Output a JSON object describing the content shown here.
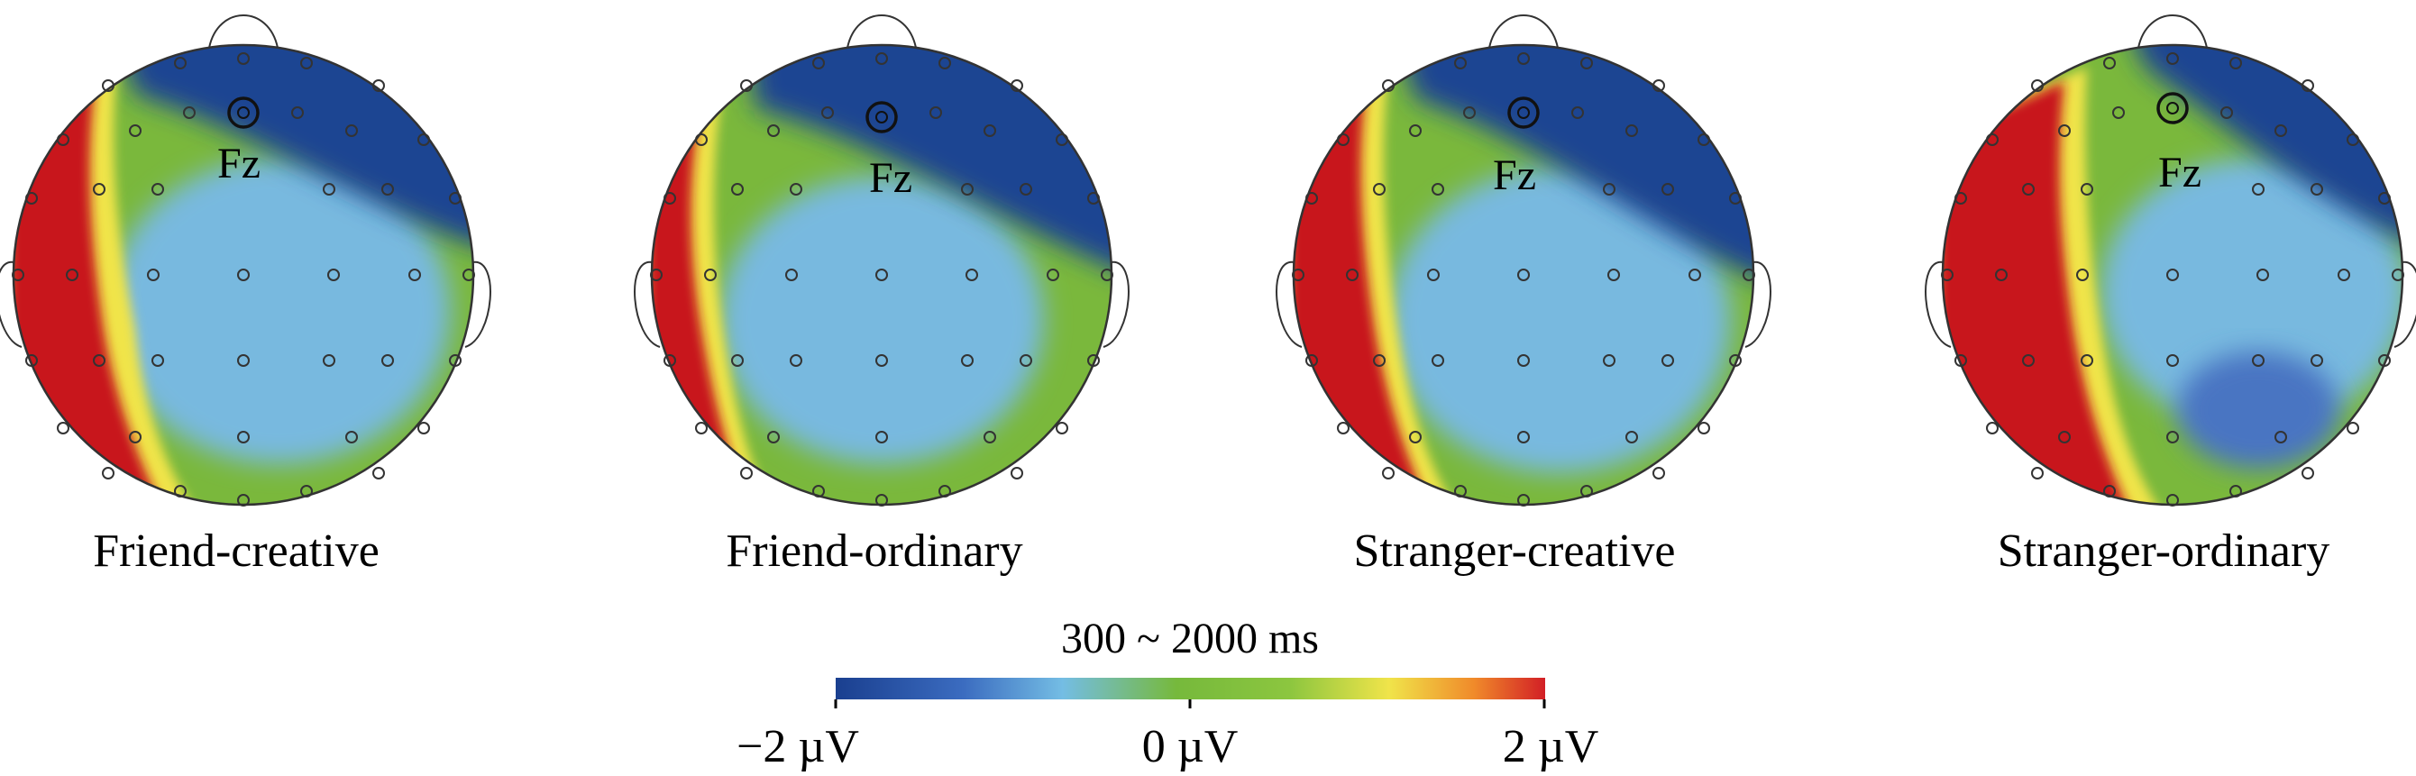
{
  "electrode_label": "Fz",
  "maps": [
    {
      "label": "Friend-creative"
    },
    {
      "label": "Friend-ordinary"
    },
    {
      "label": "Stranger-creative"
    },
    {
      "label": "Stranger-ordinary"
    }
  ],
  "colorbar": {
    "title": "300 ~ 2000 ms",
    "tick_min": "−2 µV",
    "tick_mid": "0 µV",
    "tick_max": "2 µV",
    "colors": [
      "#1a3f8f",
      "#3b6cc0",
      "#74bde4",
      "#76b93c",
      "#8cc63f",
      "#f0e44a",
      "#f08a2a",
      "#d21f26"
    ]
  },
  "palette": {
    "red": "#c8161e",
    "yellow": "#f0e44a",
    "green": "#7ab83c",
    "lightblue": "#78b9df",
    "darkblue": "#1c4592"
  }
}
